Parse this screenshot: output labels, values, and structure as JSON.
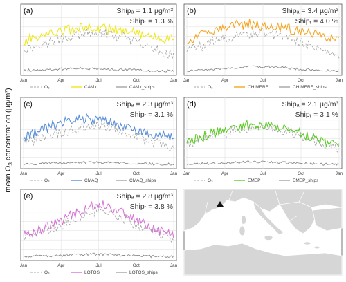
{
  "figure": {
    "ylabel_prefix": "mean O",
    "ylabel_sub": "3",
    "ylabel_suffix": " concentration (µg/m³)",
    "x_ticks": [
      "Jan",
      "Apr",
      "Jul",
      "Oct",
      "Jan"
    ]
  },
  "colors": {
    "obs": "#a8a8a8",
    "ships": "#8a8a8a",
    "frame": "#555555",
    "grid": "#e3e3e3",
    "map_sea": "#ffffff",
    "map_land": "#d6d6d6",
    "map_border": "#ffffff"
  },
  "map": {
    "marker_icon": "triangle-station-marker"
  },
  "chart_data": [
    {
      "type": "line",
      "panel_label": "(a)",
      "ship_a": "Shipₐ = 1.1 µg/m³",
      "ship_r": "Shipᵣ = 1.3 %",
      "legend": [
        "O₃",
        "CAMx",
        "CAMx_ships"
      ],
      "color": "#f0e81e",
      "x_ticks": [
        "Jan",
        "Apr",
        "Jul",
        "Oct",
        "Jan"
      ],
      "ylim": [
        0,
        140
      ],
      "grid": true,
      "x": [
        0,
        1,
        2,
        3,
        4,
        5,
        6,
        7,
        8,
        9,
        10,
        11,
        12
      ],
      "series": [
        {
          "name": "O₃",
          "style": "dashed",
          "values": [
            52,
            58,
            66,
            74,
            80,
            84,
            88,
            82,
            76,
            66,
            56,
            46,
            40
          ]
        },
        {
          "name": "CAMx",
          "values": [
            70,
            78,
            86,
            92,
            96,
            98,
            98,
            95,
            92,
            88,
            82,
            76,
            72
          ]
        },
        {
          "name": "CAMx_ships",
          "values": [
            6,
            7,
            8,
            9,
            10,
            10,
            10,
            9,
            8,
            7,
            6,
            6,
            5
          ]
        }
      ]
    },
    {
      "type": "line",
      "panel_label": "(b)",
      "ship_a": "Shipₐ = 3.4 µg/m³",
      "ship_r": "Shipᵣ = 4.0 %",
      "legend": [
        "O₃",
        "CHIMERE",
        "CHIMERE_ships"
      ],
      "color": "#f5a623",
      "x_ticks": [
        "Jan",
        "Apr",
        "Jul",
        "Oct",
        "Jan"
      ],
      "ylim": [
        0,
        140
      ],
      "grid": true,
      "x": [
        0,
        1,
        2,
        3,
        4,
        5,
        6,
        7,
        8,
        9,
        10,
        11,
        12
      ],
      "series": [
        {
          "name": "O₃",
          "style": "dashed",
          "values": [
            52,
            58,
            66,
            74,
            80,
            84,
            88,
            82,
            76,
            66,
            56,
            46,
            40
          ]
        },
        {
          "name": "CHIMERE",
          "values": [
            68,
            80,
            92,
            100,
            104,
            106,
            104,
            100,
            96,
            90,
            84,
            76,
            70
          ]
        },
        {
          "name": "CHIMERE_ships",
          "values": [
            6,
            7,
            9,
            11,
            13,
            14,
            14,
            13,
            11,
            9,
            7,
            6,
            5
          ]
        }
      ]
    },
    {
      "type": "line",
      "panel_label": "(c)",
      "ship_a": "Shipₐ = 2.3 µg/m³",
      "ship_r": "Shipᵣ = 3.1 %",
      "legend": [
        "O₃",
        "CMAQ",
        "CMAQ_ships"
      ],
      "color": "#5b8fd6",
      "x_ticks": [
        "Jan",
        "Apr",
        "Jul",
        "Oct",
        "Jan"
      ],
      "ylim": [
        0,
        140
      ],
      "grid": true,
      "x": [
        0,
        1,
        2,
        3,
        4,
        5,
        6,
        7,
        8,
        9,
        10,
        11,
        12
      ],
      "series": [
        {
          "name": "O₃",
          "style": "dashed",
          "values": [
            52,
            58,
            66,
            74,
            80,
            84,
            88,
            82,
            76,
            66,
            56,
            46,
            40
          ]
        },
        {
          "name": "CMAQ",
          "values": [
            62,
            72,
            84,
            94,
            100,
            102,
            100,
            94,
            86,
            78,
            72,
            68,
            66
          ]
        },
        {
          "name": "CMAQ_ships",
          "values": [
            5,
            6,
            7,
            8,
            9,
            9,
            9,
            8,
            7,
            6,
            6,
            5,
            5
          ]
        }
      ]
    },
    {
      "type": "line",
      "panel_label": "(d)",
      "ship_a": "Shipₐ = 2.1 µg/m³",
      "ship_r": "Shipᵣ = 3.1 %",
      "legend": [
        "O₃",
        "EMEP",
        "EMEP_ships"
      ],
      "color": "#5ccb24",
      "x_ticks": [
        "Jan",
        "Apr",
        "Jul",
        "Oct",
        "Jan"
      ],
      "ylim": [
        0,
        140
      ],
      "grid": true,
      "x": [
        0,
        1,
        2,
        3,
        4,
        5,
        6,
        7,
        8,
        9,
        10,
        11,
        12
      ],
      "series": [
        {
          "name": "O₃",
          "style": "dashed",
          "values": [
            52,
            58,
            66,
            74,
            80,
            84,
            88,
            82,
            76,
            66,
            56,
            46,
            40
          ]
        },
        {
          "name": "EMEP",
          "values": [
            54,
            62,
            72,
            80,
            86,
            90,
            90,
            86,
            78,
            70,
            60,
            52,
            46
          ]
        },
        {
          "name": "EMEP_ships",
          "values": [
            5,
            6,
            7,
            8,
            9,
            10,
            10,
            9,
            8,
            7,
            6,
            5,
            5
          ]
        }
      ]
    },
    {
      "type": "line",
      "panel_label": "(e)",
      "ship_a": "Shipₐ = 2.8 µg/m³",
      "ship_r": "Shipᵣ = 3.8 %",
      "legend": [
        "O₃",
        "LOTOS",
        "LOTOS_ships"
      ],
      "color": "#d675d6",
      "x_ticks": [
        "Jan",
        "Apr",
        "Jul",
        "Oct",
        "Jan"
      ],
      "ylim": [
        0,
        140
      ],
      "grid": true,
      "x": [
        0,
        1,
        2,
        3,
        4,
        5,
        6,
        7,
        8,
        9,
        10,
        11,
        12
      ],
      "series": [
        {
          "name": "O₃",
          "style": "dashed",
          "values": [
            48,
            54,
            62,
            72,
            84,
            96,
            104,
            96,
            86,
            74,
            62,
            52,
            44
          ]
        },
        {
          "name": "LOTOS",
          "values": [
            52,
            60,
            70,
            82,
            96,
            110,
            118,
            110,
            98,
            84,
            70,
            58,
            50
          ]
        },
        {
          "name": "LOTOS_ships",
          "values": [
            4,
            5,
            6,
            7,
            8,
            9,
            9,
            8,
            7,
            6,
            5,
            4,
            4
          ]
        }
      ]
    }
  ]
}
